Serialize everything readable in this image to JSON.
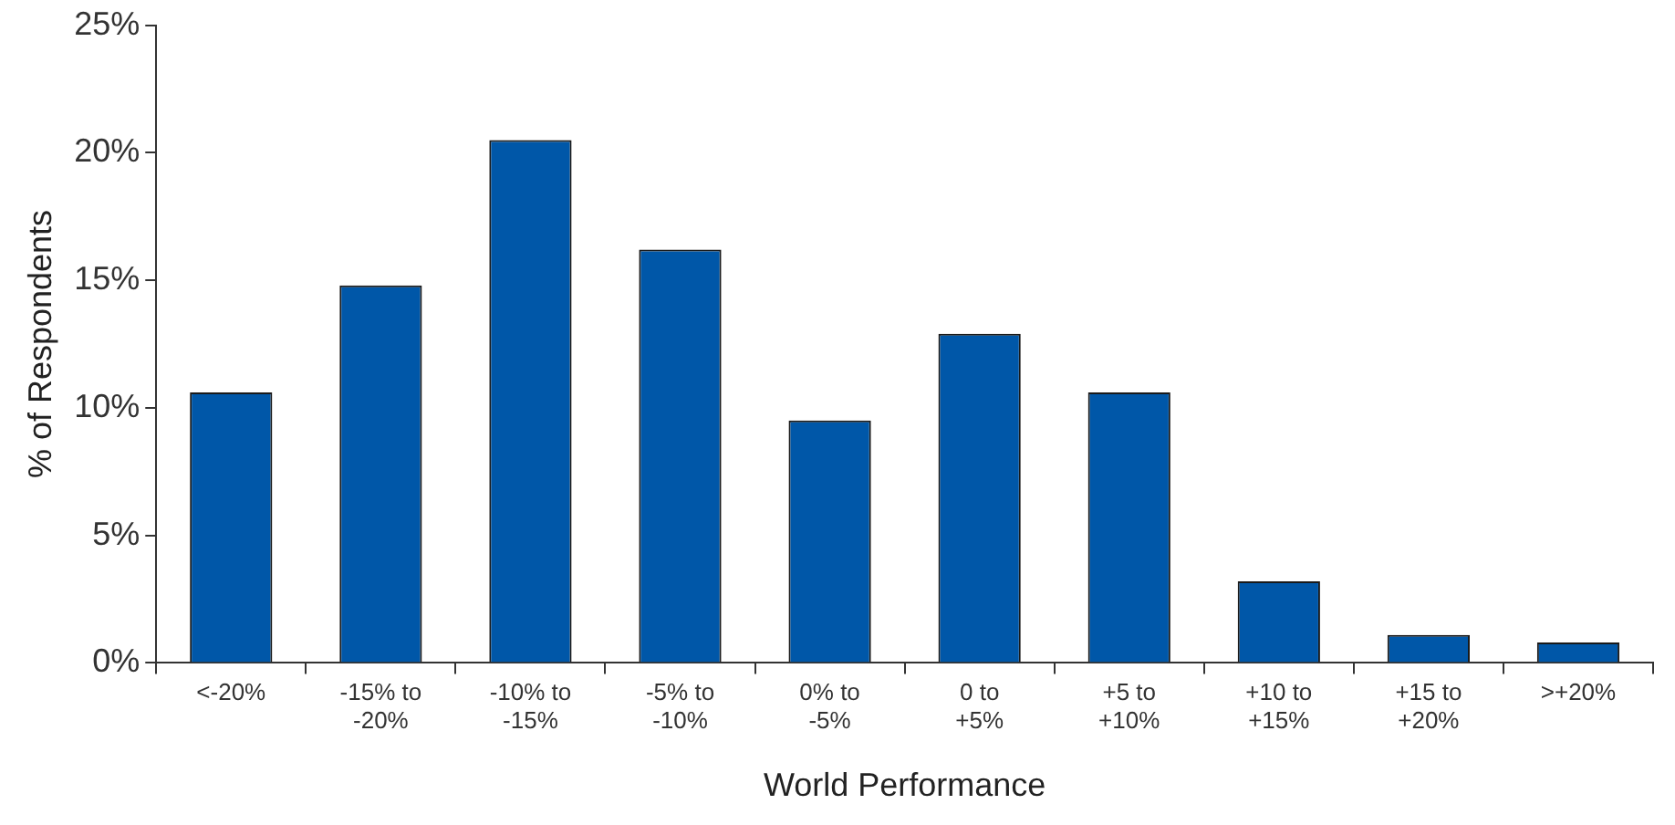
{
  "chart_data": {
    "type": "bar",
    "xlabel": "World Performance",
    "ylabel": "% of Respondents",
    "categories": [
      "<-20%",
      "-15% to\n-20%",
      "-10% to\n-15%",
      "-5% to\n-10%",
      "0% to\n-5%",
      "0 to\n+5%",
      "+5 to\n+10%",
      "+10 to\n+15%",
      "+15 to\n+20%",
      ">+20%"
    ],
    "values": [
      10.6,
      14.8,
      20.5,
      16.2,
      9.5,
      12.9,
      10.6,
      3.2,
      1.1,
      0.8
    ],
    "color": "#0057a8",
    "ylim": [
      0,
      25
    ],
    "yticks": [
      {
        "value": 0,
        "label": "0%"
      },
      {
        "value": 5,
        "label": "5%"
      },
      {
        "value": 10,
        "label": "10%"
      },
      {
        "value": 15,
        "label": "15%"
      },
      {
        "value": 20,
        "label": "20%"
      },
      {
        "value": 25,
        "label": "25%"
      }
    ],
    "grid": false,
    "legend": false
  }
}
